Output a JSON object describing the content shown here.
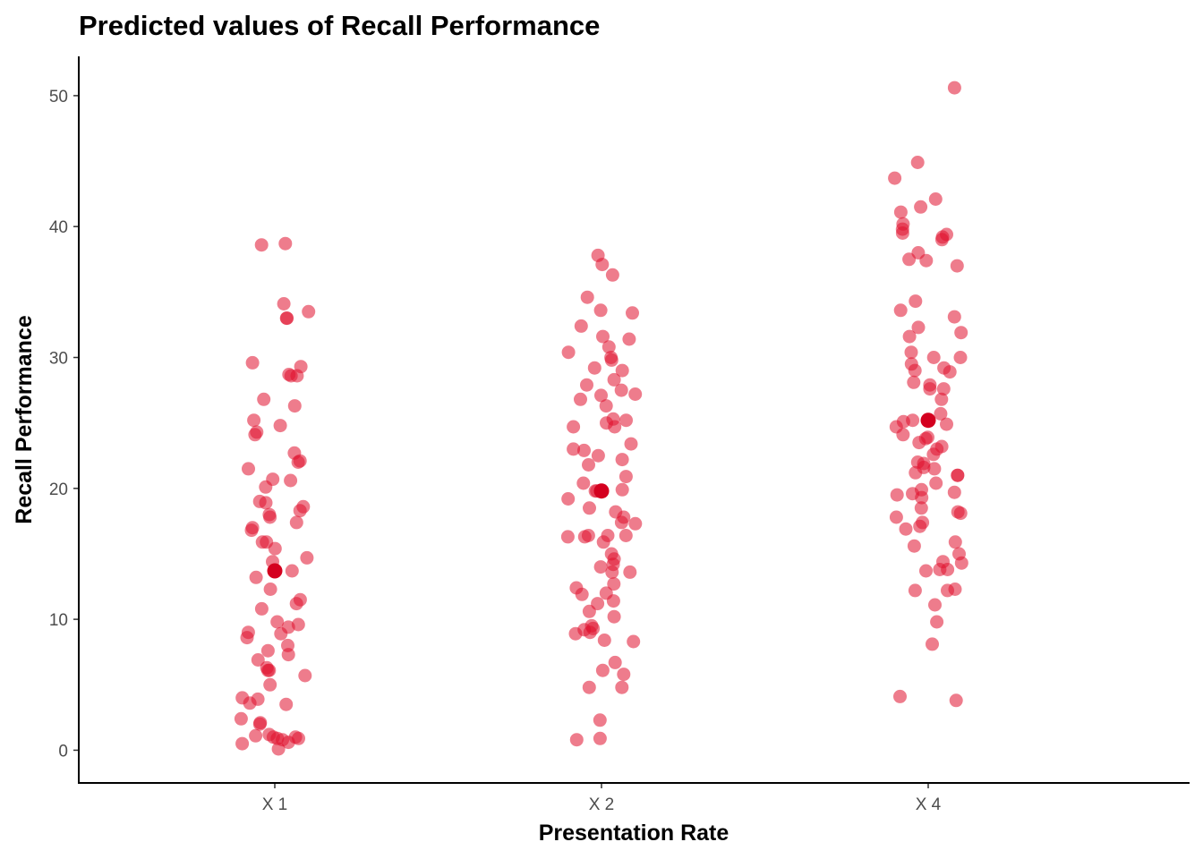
{
  "chart_data": {
    "type": "scatter",
    "title": "Predicted values of Recall Performance",
    "xlabel": "Presentation Rate",
    "ylabel": "Recall Performance",
    "categories": [
      "X 1",
      "X 2",
      "X 4"
    ],
    "yticks": [
      0,
      10,
      20,
      30,
      40,
      50
    ],
    "ylim": [
      -2.5,
      53
    ],
    "grid": false,
    "point_color": "#e0102e",
    "predicted_color": "#d4001f",
    "predicted": [
      13.7,
      19.8,
      25.2
    ],
    "raw_points": [
      {
        "category": "X 1",
        "values": [
          38.7,
          38.6,
          34.1,
          33.5,
          33.0,
          33.0,
          29.6,
          29.3,
          28.7,
          28.6,
          28.6,
          26.8,
          26.3,
          25.2,
          24.8,
          24.3,
          24.1,
          22.7,
          22.1,
          22.0,
          21.5,
          20.7,
          20.6,
          20.1,
          19.0,
          18.9,
          18.6,
          18.3,
          18.0,
          17.8,
          17.4,
          17.0,
          16.8,
          15.9,
          15.9,
          15.4,
          14.7,
          14.4,
          13.7,
          13.2,
          12.3,
          11.5,
          11.2,
          10.8,
          9.8,
          9.6,
          9.4,
          9.0,
          8.9,
          8.6,
          8.0,
          7.6,
          7.3,
          6.9,
          6.3,
          6.1,
          6.1,
          5.7,
          5.0,
          4.0,
          3.9,
          3.6,
          3.5,
          2.4,
          2.1,
          2.0,
          1.2,
          1.1,
          1.0,
          1.0,
          0.9,
          0.9,
          0.8,
          0.6,
          0.5,
          0.1
        ]
      },
      {
        "category": "X 2",
        "values": [
          37.8,
          37.1,
          36.3,
          34.6,
          33.6,
          33.4,
          32.4,
          31.6,
          31.4,
          30.8,
          30.4,
          30.0,
          29.8,
          29.2,
          29.0,
          28.3,
          27.9,
          27.5,
          27.2,
          27.1,
          26.8,
          26.3,
          25.3,
          25.2,
          25.0,
          24.7,
          24.7,
          23.4,
          23.0,
          22.9,
          22.5,
          22.2,
          21.8,
          20.9,
          20.4,
          19.9,
          19.8,
          19.8,
          19.2,
          18.5,
          18.2,
          17.8,
          17.4,
          17.3,
          16.4,
          16.4,
          16.4,
          16.3,
          16.3,
          15.9,
          15.0,
          14.6,
          14.2,
          14.0,
          13.6,
          13.6,
          12.7,
          12.4,
          12.0,
          11.9,
          11.4,
          11.2,
          10.6,
          10.2,
          9.5,
          9.3,
          9.2,
          9.0,
          8.9,
          8.4,
          8.3,
          6.7,
          6.1,
          5.8,
          4.8,
          4.8,
          2.3,
          0.9,
          0.8
        ]
      },
      {
        "category": "X 4",
        "values": [
          50.6,
          44.9,
          43.7,
          42.1,
          41.5,
          41.1,
          40.2,
          39.8,
          39.5,
          39.4,
          39.2,
          39.0,
          38.0,
          37.5,
          37.4,
          37.0,
          34.3,
          33.6,
          33.1,
          32.3,
          31.9,
          31.6,
          30.4,
          30.0,
          30.0,
          29.5,
          29.2,
          29.0,
          28.9,
          28.1,
          27.9,
          27.6,
          27.6,
          26.8,
          25.7,
          25.2,
          25.1,
          24.9,
          24.7,
          24.1,
          23.9,
          23.8,
          23.5,
          23.2,
          23.0,
          22.6,
          22.0,
          21.9,
          21.6,
          21.5,
          21.2,
          21.0,
          21.0,
          20.4,
          19.9,
          19.7,
          19.6,
          19.5,
          19.3,
          18.5,
          18.2,
          18.1,
          17.8,
          17.4,
          17.1,
          16.9,
          15.9,
          15.6,
          15.0,
          14.4,
          14.3,
          13.8,
          13.7,
          13.8,
          12.3,
          12.2,
          12.2,
          11.1,
          9.8,
          8.1,
          4.1,
          3.8
        ]
      }
    ]
  }
}
